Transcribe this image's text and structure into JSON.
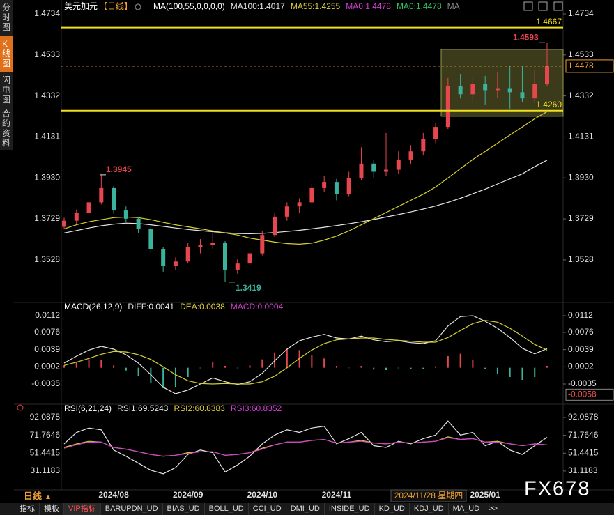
{
  "chart_data": [
    {
      "type": "candlestick",
      "title": "美元加元",
      "period": "【日线】",
      "indicator": "MA(100,55,0,0,0,0)",
      "legend": [
        {
          "label": "MA100:1.4017",
          "color": "#e6e6e6"
        },
        {
          "label": "MA55:1.4255",
          "color": "#e0d040"
        },
        {
          "label": "MA0:1.4478",
          "color": "#d040d0"
        },
        {
          "label": "MA0:1.4478",
          "color": "#30c060"
        },
        {
          "label": "MA",
          "color": "#888888"
        }
      ],
      "categories": [
        null,
        null,
        null,
        null,
        "2024/08",
        null,
        null,
        null,
        null,
        null,
        "2024/09",
        null,
        null,
        null,
        null,
        null,
        "2024/10",
        null,
        null,
        null,
        null,
        null,
        "2024/11",
        null,
        null,
        null,
        null,
        null,
        null,
        null,
        null,
        null,
        null,
        null,
        "2025/01",
        null,
        null,
        null,
        null,
        null
      ],
      "open": [
        1.369,
        1.372,
        1.376,
        1.381,
        1.388,
        1.377,
        1.373,
        1.368,
        1.358,
        1.35,
        1.352,
        1.359,
        1.36,
        1.361,
        1.348,
        1.351,
        1.356,
        1.365,
        1.374,
        1.379,
        1.381,
        1.388,
        1.391,
        1.385,
        1.393,
        1.4,
        1.396,
        1.397,
        1.402,
        1.406,
        1.412,
        1.418,
        1.438,
        1.434,
        1.439,
        1.436,
        1.437,
        1.435,
        1.432,
        1.439
      ],
      "high": [
        1.3735,
        1.3775,
        1.383,
        1.3945,
        1.389,
        1.379,
        1.374,
        1.369,
        1.359,
        1.354,
        1.361,
        1.363,
        1.366,
        1.362,
        1.353,
        1.3575,
        1.367,
        1.376,
        1.381,
        1.383,
        1.39,
        1.394,
        1.3925,
        1.396,
        1.408,
        1.402,
        1.415,
        1.406,
        1.409,
        1.415,
        1.42,
        1.442,
        1.444,
        1.442,
        1.443,
        1.445,
        1.448,
        1.448,
        1.446,
        1.4593
      ],
      "low": [
        1.368,
        1.3705,
        1.3745,
        1.38,
        1.3755,
        1.3715,
        1.366,
        1.356,
        1.347,
        1.348,
        1.351,
        1.356,
        1.358,
        1.3419,
        1.346,
        1.35,
        1.355,
        1.364,
        1.372,
        1.376,
        1.38,
        1.386,
        1.382,
        1.384,
        1.392,
        1.393,
        1.394,
        1.395,
        1.4,
        1.404,
        1.41,
        1.417,
        1.432,
        1.43,
        1.429,
        1.432,
        1.427,
        1.43,
        1.43,
        1.438
      ],
      "close": [
        1.372,
        1.376,
        1.381,
        1.388,
        1.377,
        1.373,
        1.368,
        1.358,
        1.35,
        1.352,
        1.359,
        1.36,
        1.361,
        1.348,
        1.351,
        1.356,
        1.365,
        1.374,
        1.379,
        1.381,
        1.388,
        1.391,
        1.385,
        1.393,
        1.4,
        1.396,
        1.397,
        1.402,
        1.406,
        1.412,
        1.418,
        1.438,
        1.434,
        1.439,
        1.436,
        1.437,
        1.435,
        1.432,
        1.439,
        1.4478
      ],
      "up_color": "#e8464f",
      "down_color": "#3bb39c",
      "series": [
        {
          "color": "#e6e6e6",
          "values": [
            1.366,
            1.3672,
            1.3684,
            1.3695,
            1.3703,
            1.3708,
            1.3706,
            1.37,
            1.3692,
            1.3684,
            1.3677,
            1.3671,
            1.3666,
            1.3661,
            1.3657,
            1.3656,
            1.3658,
            1.3662,
            1.3667,
            1.3673,
            1.368,
            1.3688,
            1.3696,
            1.3705,
            1.3715,
            1.3726,
            1.3738,
            1.375,
            1.3763,
            1.3777,
            1.3792,
            1.381,
            1.383,
            1.3852,
            1.3875,
            1.39,
            1.3925,
            1.395,
            1.3985,
            1.4017
          ]
        },
        {
          "color": "#d8d030",
          "values": [
            1.368,
            1.37,
            1.3715,
            1.3725,
            1.3735,
            1.3738,
            1.3735,
            1.3725,
            1.3712,
            1.37,
            1.369,
            1.368,
            1.367,
            1.366,
            1.365,
            1.3635,
            1.3625,
            1.3615,
            1.3608,
            1.3605,
            1.361,
            1.3625,
            1.3645,
            1.367,
            1.37,
            1.373,
            1.376,
            1.379,
            1.382,
            1.385,
            1.3885,
            1.393,
            1.3975,
            1.402,
            1.406,
            1.41,
            1.414,
            1.418,
            1.422,
            1.4255
          ]
        }
      ],
      "hlines": [
        {
          "value": 1.4667,
          "label": "1.4667",
          "color": "#f0e020"
        },
        {
          "value": 1.426,
          "label": "1.4260",
          "color": "#f0e020"
        }
      ],
      "current_price": 1.4478,
      "current_color": "#f0a030",
      "box": {
        "top": 1.456,
        "bottom": 1.4232
      },
      "annotations": [
        {
          "value": 1.4593,
          "color": "#e8464f"
        },
        {
          "value": 1.3945,
          "color": "#e8464f"
        },
        {
          "value": 1.3419,
          "color": "#3bb39c"
        }
      ],
      "ylim": [
        1.3326,
        1.4734
      ],
      "yticks": [
        1.4734,
        1.4533,
        1.4332,
        1.4131,
        {
          "value": 1.393,
          "label": "1.3930"
        },
        1.3729,
        1.3528
      ]
    },
    {
      "type": "macd",
      "title": "MACD(26,12,9)",
      "legend": [
        {
          "label": "DIFF:0.0041",
          "color": "#e6e6e6"
        },
        {
          "label": "DEA:0.0038",
          "color": "#e0d040"
        },
        {
          "label": "MACD:0.0004",
          "color": "#d040d0"
        }
      ],
      "series": [
        {
          "color": "#e6e6e6",
          "values": [
            0.001,
            0.0025,
            0.0038,
            0.0046,
            0.004,
            0.0028,
            0.001,
            -0.0015,
            -0.0042,
            -0.0056,
            -0.0048,
            -0.0035,
            -0.0022,
            -0.003,
            -0.0036,
            -0.003,
            -0.0012,
            0.0015,
            0.004,
            0.0058,
            0.0066,
            0.0072,
            0.0064,
            0.0062,
            0.0068,
            0.006,
            0.0056,
            0.0058,
            0.0054,
            0.0052,
            0.0058,
            0.009,
            0.011,
            0.0112,
            0.01,
            0.0085,
            0.0065,
            0.0042,
            0.003,
            0.0041
          ]
        },
        {
          "color": "#d8d030",
          "values": [
            0.0005,
            0.0012,
            0.002,
            0.0029,
            0.0035,
            0.0034,
            0.0028,
            0.0018,
            0.0002,
            -0.0015,
            -0.0028,
            -0.0034,
            -0.0035,
            -0.0034,
            -0.0035,
            -0.0035,
            -0.003,
            -0.0018,
            0,
            0.002,
            0.0038,
            0.0052,
            0.006,
            0.0062,
            0.0064,
            0.0064,
            0.0061,
            0.0059,
            0.0057,
            0.0055,
            0.0055,
            0.0065,
            0.008,
            0.0095,
            0.0102,
            0.0098,
            0.0085,
            0.0068,
            0.005,
            0.0038
          ]
        }
      ],
      "histogram": {
        "up_color": "#e8464f",
        "down_color": "#3bb39c",
        "values": [
          0.0005,
          0.0013,
          0.0018,
          0.0017,
          0.0005,
          -0.0006,
          -0.0018,
          -0.0033,
          -0.0044,
          -0.0041,
          -0.002,
          -0.0001,
          0.0013,
          0.0004,
          -0.0001,
          0.0005,
          0.0018,
          0.0033,
          0.004,
          0.0038,
          0.0028,
          0.002,
          0.0004,
          0,
          0.0004,
          -0.0004,
          -0.0005,
          -0.0001,
          -0.0003,
          -0.0003,
          0.0003,
          0.0025,
          0.003,
          0.0017,
          -0.0002,
          -0.0013,
          -0.002,
          -0.0026,
          -0.002,
          0.0004
        ]
      },
      "cursor_value": -0.0058,
      "ylim": [
        -0.0071,
        0.0112
      ],
      "yticks": [
        0.0112,
        0.0076,
        0.0039,
        0.0002,
        -0.0035
      ]
    },
    {
      "type": "rsi",
      "title": "RSI(6,21,24)",
      "legend": [
        {
          "label": "RSI1:69.5243",
          "color": "#e6e6e6"
        },
        {
          "label": "RSI2:60.8383",
          "color": "#e0d040"
        },
        {
          "label": "RSI3:60.8352",
          "color": "#d040d0"
        }
      ],
      "series": [
        {
          "color": "#e6e6e6",
          "values": [
            62,
            75,
            80,
            78,
            55,
            48,
            40,
            32,
            28,
            35,
            50,
            55,
            52,
            30,
            38,
            48,
            62,
            72,
            78,
            75,
            80,
            82,
            62,
            68,
            75,
            60,
            58,
            65,
            62,
            68,
            72,
            88,
            72,
            75,
            60,
            65,
            55,
            50,
            60,
            69.5243
          ]
        },
        {
          "color": "#d8d030",
          "values": [
            58,
            62,
            65,
            64,
            58,
            56,
            53,
            50,
            48,
            49,
            52,
            53,
            53,
            49,
            50,
            52,
            57,
            61,
            64,
            64,
            66,
            67,
            63,
            64,
            66,
            63,
            62,
            64,
            63,
            64,
            65,
            70,
            67,
            68,
            64,
            65,
            62,
            60,
            62,
            60.8383
          ]
        },
        {
          "color": "#d040d0",
          "values": [
            57,
            61,
            64,
            64,
            58,
            56,
            53,
            50,
            48,
            49,
            51,
            53,
            53,
            49,
            50,
            52,
            56,
            61,
            64,
            64,
            66,
            67,
            63,
            64,
            65,
            63,
            62,
            64,
            63,
            64,
            65,
            69,
            67,
            68,
            64,
            64,
            62,
            60,
            62,
            60.8352
          ]
        }
      ],
      "ylim": [
        12,
        92.0878
      ],
      "yticks": [
        92.0878,
        71.7646,
        51.4415,
        31.1183
      ]
    }
  ],
  "ui": {
    "sidebar": [
      "分时图",
      "K线图",
      "闪电图",
      "合约资料"
    ],
    "period_button": "日线",
    "crosshair_date": "2024/11/28 星期四",
    "watermark": "FX678",
    "toolbar": [
      "指标",
      "模板",
      "VIP指标",
      "BARUPDN_UD",
      "BIAS_UD",
      "BOLL_UD",
      "CCI_UD",
      "DMI_UD",
      "INSIDE_UD",
      "KD_UD",
      "KDJ_UD",
      "MA_UD",
      ">>"
    ]
  }
}
